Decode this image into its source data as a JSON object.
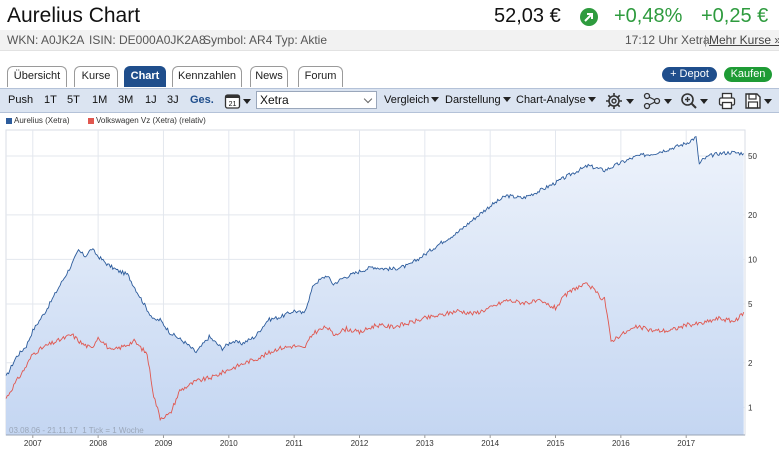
{
  "header": {
    "title": "Aurelius Chart",
    "price": "52,03 €",
    "change_pct": "+0,48%",
    "change_abs": "+0,25 €",
    "trend_icon": "arrow-up-right-icon",
    "positive_color": "#2e9b3e"
  },
  "subbar": {
    "wkn": "WKN: A0JK2A",
    "isin": "ISIN: DE000A0JK2A8",
    "symbol": "Symbol: AR4",
    "type": "Typ: Aktie",
    "time": "17:12 Uhr Xetra",
    "separator": "|",
    "more_link": "Mehr Kurse »"
  },
  "tabs": [
    {
      "label": "Übersicht",
      "active": false
    },
    {
      "label": "Kurse",
      "active": false
    },
    {
      "label": "Chart",
      "active": true
    },
    {
      "label": "Kennzahlen",
      "active": false
    },
    {
      "label": "News",
      "active": false
    },
    {
      "label": "Forum",
      "active": false
    }
  ],
  "actions": {
    "depot": "+ Depot",
    "buy": "Kaufen"
  },
  "toolbar": {
    "push": "Push",
    "ranges": [
      "1T",
      "5T",
      "1M",
      "3M",
      "1J",
      "3J",
      "Ges."
    ],
    "active_range": "Ges.",
    "calendar_day": "21",
    "exchange": "Xetra",
    "compare": "Vergleich",
    "display": "Darstellung",
    "analysis": "Chart-Analyse",
    "icons": [
      "settings-icon",
      "indicators-icon",
      "zoom-icon",
      "print-icon",
      "save-icon"
    ]
  },
  "legend": {
    "series1": "Aurelius (Xetra)",
    "series2": "Volkswagen Vz (Xetra) (relativ)"
  },
  "footer": {
    "range": "03.08.06 - 21.11.17",
    "tick": "1 Tick = 1 Woche"
  },
  "chart_data": {
    "type": "line",
    "yscale": "log",
    "ylim": [
      0.65,
      75
    ],
    "x_range": [
      "2006-08-03",
      "2017-11-21"
    ],
    "yticks": [
      "50",
      "20",
      "10",
      "5",
      "2",
      "1"
    ],
    "ytick_values": [
      50,
      20,
      10,
      5,
      2,
      1
    ],
    "xticks": [
      "2007",
      "2008",
      "2009",
      "2010",
      "2011",
      "2012",
      "2013",
      "2014",
      "2015",
      "2016",
      "2017"
    ],
    "grid": true,
    "legend_position": "top-left",
    "colors": {
      "aurelius": "#2d5c9c",
      "volkswagen": "#e0574f",
      "fill": "#c4d6f2"
    },
    "series": [
      {
        "name": "Aurelius (Xetra)",
        "x": [
          2006.59,
          2006.75,
          2006.9,
          2007.0,
          2007.2,
          2007.4,
          2007.6,
          2007.7,
          2007.8,
          2007.9,
          2008.0,
          2008.15,
          2008.3,
          2008.45,
          2008.6,
          2008.75,
          2008.85,
          2008.95,
          2009.1,
          2009.2,
          2009.35,
          2009.5,
          2009.7,
          2009.9,
          2010.05,
          2010.2,
          2010.4,
          2010.6,
          2010.8,
          2011.0,
          2011.15,
          2011.3,
          2011.5,
          2011.6,
          2011.75,
          2012.0,
          2012.2,
          2012.35,
          2012.5,
          2012.75,
          2013.0,
          2013.25,
          2013.5,
          2013.75,
          2014.0,
          2014.25,
          2014.5,
          2014.75,
          2015.0,
          2015.25,
          2015.5,
          2015.75,
          2016.0,
          2016.25,
          2016.5,
          2016.75,
          2017.0,
          2017.15,
          2017.2,
          2017.25,
          2017.35,
          2017.5,
          2017.7,
          2017.88
        ],
        "y": [
          1.6,
          2.2,
          2.6,
          3.3,
          4.5,
          6.5,
          9.3,
          11.5,
          10.5,
          11.8,
          10.5,
          9.2,
          8.4,
          7.9,
          6.0,
          4.6,
          3.9,
          3.9,
          3.2,
          3.0,
          2.7,
          2.35,
          3.0,
          2.5,
          2.8,
          2.7,
          3.0,
          3.9,
          4.1,
          4.5,
          4.3,
          6.8,
          7.8,
          6.8,
          7.5,
          8.3,
          8.9,
          8.7,
          8.6,
          9.1,
          10.8,
          13.0,
          15.2,
          18.8,
          23.0,
          27.0,
          26.0,
          29.0,
          33.0,
          38.0,
          43.0,
          40.0,
          45.0,
          50.0,
          52.0,
          56.0,
          61.0,
          67.0,
          44.0,
          47.0,
          50.0,
          52.0,
          53.0,
          52.0
        ]
      },
      {
        "name": "Volkswagen Vz (Xetra) (relativ)",
        "x": [
          2006.59,
          2006.75,
          2006.9,
          2007.0,
          2007.2,
          2007.45,
          2007.6,
          2007.75,
          2007.9,
          2008.0,
          2008.2,
          2008.4,
          2008.55,
          2008.75,
          2008.85,
          2008.95,
          2009.1,
          2009.25,
          2009.5,
          2009.75,
          2010.0,
          2010.25,
          2010.5,
          2010.75,
          2011.0,
          2011.15,
          2011.3,
          2011.5,
          2011.6,
          2011.8,
          2012.0,
          2012.25,
          2012.5,
          2012.75,
          2013.0,
          2013.25,
          2013.5,
          2013.75,
          2014.0,
          2014.25,
          2014.5,
          2014.75,
          2015.0,
          2015.15,
          2015.3,
          2015.5,
          2015.7,
          2015.75,
          2015.85,
          2016.0,
          2016.25,
          2016.5,
          2016.75,
          2017.0,
          2017.25,
          2017.5,
          2017.75,
          2017.88
        ],
        "y": [
          1.15,
          1.5,
          1.9,
          2.3,
          2.6,
          2.9,
          3.1,
          2.7,
          2.5,
          3.0,
          2.4,
          2.6,
          2.8,
          2.3,
          1.2,
          0.85,
          0.9,
          1.3,
          1.5,
          1.6,
          1.8,
          2.0,
          2.2,
          2.5,
          2.6,
          2.5,
          3.2,
          3.5,
          3.1,
          3.4,
          3.2,
          3.6,
          3.5,
          3.7,
          4.0,
          4.2,
          4.5,
          4.3,
          4.7,
          5.3,
          5.1,
          5.2,
          4.7,
          5.7,
          6.4,
          6.8,
          5.5,
          5.5,
          2.8,
          3.1,
          3.5,
          3.3,
          3.3,
          3.6,
          3.7,
          4.0,
          3.8,
          4.4
        ]
      }
    ]
  }
}
